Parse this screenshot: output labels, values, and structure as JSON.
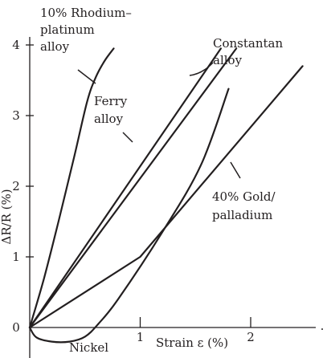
{
  "chart_data": {
    "type": "line",
    "title": "",
    "xlabel": "Strain ε (%)",
    "ylabel": "ΔR/R (%)",
    "xlim": [
      0,
      2.6
    ],
    "ylim": [
      0,
      4
    ],
    "x_ticks": [
      "1",
      "2"
    ],
    "y_ticks": [
      "0",
      "1",
      "2",
      "3",
      "4"
    ],
    "grid": false,
    "series": [
      {
        "name": "10% Rhodium–platinum alloy",
        "label_lines": [
          "10% Rhodium–",
          "platinum",
          "alloy"
        ],
        "x": [
          0,
          0.13,
          0.26,
          0.4,
          0.52,
          0.6,
          0.68,
          0.76
        ],
        "y": [
          0,
          0.7,
          1.5,
          2.4,
          3.2,
          3.55,
          3.78,
          3.95
        ]
      },
      {
        "name": "Ferry alloy",
        "label_lines": [
          "Ferry",
          "alloy"
        ],
        "x": [
          0,
          1.73
        ],
        "y": [
          0,
          3.95
        ]
      },
      {
        "name": "Constantan alloy",
        "label_lines": [
          "Constantan",
          "alloy"
        ],
        "x": [
          0,
          1.87
        ],
        "y": [
          0,
          3.95
        ]
      },
      {
        "name": "40% Gold/palladium",
        "label_lines": [
          "40% Gold/",
          "palladium"
        ],
        "x": [
          0,
          1.0,
          2.47
        ],
        "y": [
          0,
          1.0,
          3.7
        ]
      },
      {
        "name": "Nickel",
        "label_lines": [
          "Nickel"
        ],
        "x": [
          0,
          0.06,
          0.2,
          0.36,
          0.5,
          0.62,
          0.8,
          1.2,
          1.55,
          1.8
        ],
        "y": [
          0,
          -0.14,
          -0.2,
          -0.2,
          -0.13,
          0.05,
          0.4,
          1.35,
          2.3,
          3.38
        ]
      }
    ]
  }
}
